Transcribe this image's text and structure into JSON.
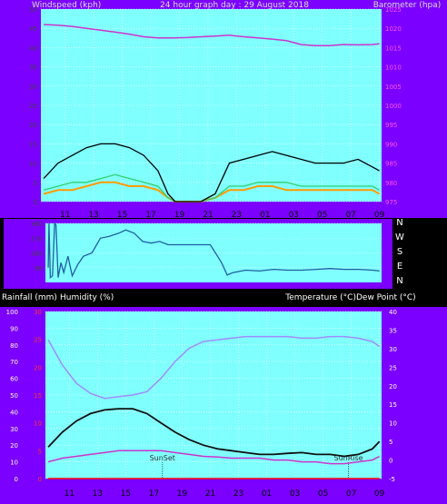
{
  "page": {
    "title": "24 hour graph day : 29 August 2018",
    "colors": {
      "background": "#000000",
      "frame": "#7b00ff",
      "plot": "#80ffff",
      "grid": "#ffffff",
      "wind_speed": "#000000",
      "wind_avg": "#2fd16d",
      "wind_gust": "#ff9a00",
      "barometer": "#cc33cc",
      "direction": "#1f5fa0",
      "humidity": "#a08cff",
      "temperature": "#101010",
      "dew_point": "#cc33cc",
      "rainfall": "#ff0000"
    }
  },
  "chart_data": [
    {
      "type": "line",
      "name": "wind-barometer",
      "title": "24 hour graph day : 29 August 2018",
      "ylabel": "Windspeed (kph)",
      "y2label": "Barometer (hpa)",
      "xticks": [
        "11",
        "13",
        "15",
        "17",
        "19",
        "21",
        "23",
        "01",
        "03",
        "05",
        "07",
        "09"
      ],
      "x_hours_ticks": [
        11,
        13,
        15,
        17,
        19,
        21,
        23,
        25,
        27,
        29,
        31,
        33
      ],
      "xlim": [
        9.3,
        33.15
      ],
      "ylim": [
        0,
        50
      ],
      "yticks": [
        0,
        5,
        10,
        15,
        20,
        25,
        30,
        35,
        40,
        45,
        50
      ],
      "y2lim": [
        975,
        1025
      ],
      "y2ticks": [
        975,
        980,
        985,
        990,
        995,
        1000,
        1005,
        1010,
        1015,
        1020,
        1025
      ],
      "series": [
        {
          "key": "wind_speed",
          "x_hours": [
            9.5,
            10.5,
            11.5,
            12.5,
            13.5,
            14.5,
            15.5,
            16.5,
            17.5,
            18.2,
            18.7,
            19.5,
            20.5,
            21.5,
            22.5,
            23.5,
            24.5,
            25.5,
            26.5,
            27.5,
            28.5,
            29.5,
            30.5,
            31.5,
            32.5,
            33.0
          ],
          "values": [
            6,
            10,
            12,
            14,
            15,
            15,
            14,
            12,
            8,
            2,
            0,
            0,
            0,
            2,
            10,
            11,
            12,
            13,
            12,
            11,
            10,
            10,
            10,
            11,
            9,
            8
          ]
        },
        {
          "key": "wind_avg",
          "x_hours": [
            9.5,
            10.5,
            11.5,
            12.5,
            13.5,
            14.5,
            15.5,
            16.5,
            17.5,
            18.2,
            18.7,
            19.5,
            20.5,
            21.5,
            22.5,
            23.5,
            24.5,
            25.5,
            26.5,
            27.5,
            28.5,
            29.5,
            30.5,
            31.5,
            32.5,
            33.0
          ],
          "values": [
            3,
            4,
            5,
            5,
            6,
            7,
            6,
            5,
            4,
            1,
            0,
            0,
            0,
            1,
            4,
            4,
            5,
            5,
            5,
            4,
            4,
            4,
            4,
            4,
            4,
            3
          ]
        },
        {
          "key": "wind_gust",
          "x_hours": [
            9.5,
            10.5,
            11.5,
            12.5,
            13.5,
            14.5,
            15.5,
            16.5,
            17.5,
            18.2,
            18.7,
            19.5,
            20.5,
            21.5,
            22.5,
            23.5,
            24.5,
            25.5,
            26.5,
            27.5,
            28.5,
            29.5,
            30.5,
            31.5,
            32.5,
            33.0
          ],
          "values": [
            2,
            3,
            3,
            4,
            5,
            5,
            4,
            4,
            3,
            1,
            0,
            0,
            0,
            1,
            3,
            3,
            4,
            4,
            3,
            3,
            3,
            3,
            3,
            3,
            3,
            2
          ]
        },
        {
          "key": "barometer",
          "axis": "y2",
          "x_hours": [
            9.5,
            10.5,
            11.5,
            12.5,
            13.5,
            14.5,
            15.5,
            16.5,
            17.5,
            18.5,
            19.5,
            20.5,
            21.5,
            22.5,
            23.5,
            24.5,
            25.5,
            26.5,
            27.5,
            28.5,
            29.5,
            30.5,
            31.5,
            32.5,
            33.0
          ],
          "values": [
            1021.0,
            1020.8,
            1020.5,
            1020.0,
            1019.5,
            1019.0,
            1018.5,
            1017.8,
            1017.5,
            1017.5,
            1017.6,
            1017.8,
            1018.0,
            1018.2,
            1017.8,
            1017.5,
            1017.2,
            1016.8,
            1015.8,
            1015.5,
            1015.5,
            1015.8,
            1015.7,
            1015.8,
            1016.0
          ]
        }
      ]
    },
    {
      "type": "line",
      "name": "wind-direction",
      "ylim": [
        0,
        360
      ],
      "yticks": [
        90,
        180,
        270,
        360
      ],
      "ytick_labels": [
        "90",
        "180",
        "270",
        "360"
      ],
      "direction_labels": [
        "N",
        "W",
        "S",
        "E",
        "N"
      ],
      "xlim": [
        9.3,
        33.15
      ],
      "series": [
        {
          "key": "direction",
          "x_hours": [
            9.5,
            9.55,
            9.65,
            9.8,
            9.95,
            10.05,
            10.2,
            10.4,
            10.6,
            10.9,
            11.2,
            11.6,
            12.0,
            12.6,
            13.2,
            13.8,
            14.5,
            15.0,
            15.6,
            16.2,
            16.8,
            17.4,
            18.0,
            18.5,
            19.0,
            20.0,
            21.0,
            21.8,
            22.2,
            22.6,
            23.5,
            24.5,
            25.5,
            26.5,
            27.5,
            28.5,
            29.5,
            30.5,
            31.5,
            32.5,
            33.0
          ],
          "values": [
            90,
            360,
            30,
            40,
            360,
            350,
            30,
            120,
            60,
            160,
            40,
            110,
            160,
            180,
            270,
            280,
            300,
            320,
            300,
            250,
            240,
            250,
            230,
            230,
            230,
            230,
            230,
            120,
            45,
            60,
            75,
            70,
            80,
            75,
            75,
            80,
            85,
            80,
            80,
            75,
            70
          ]
        }
      ]
    },
    {
      "type": "line",
      "name": "temp-humidity",
      "ylabel_left1": "Rainfall (mm)",
      "ylabel_left2": "Humidity (%)",
      "ylabel_right": "Temperature (°C)Dew Point (°C)",
      "xticks": [
        "11",
        "13",
        "15",
        "17",
        "19",
        "21",
        "23",
        "01",
        "03",
        "05",
        "07",
        "09"
      ],
      "x_hours_ticks": [
        11,
        13,
        15,
        17,
        19,
        21,
        23,
        25,
        27,
        29,
        31,
        33
      ],
      "xlim": [
        9.3,
        33.15
      ],
      "humidity_lim": [
        0,
        100
      ],
      "humidity_ticks": [
        0,
        10,
        20,
        30,
        40,
        50,
        60,
        70,
        80,
        90,
        100
      ],
      "rain_lim": [
        0,
        30
      ],
      "rain_ticks": [
        0,
        5,
        10,
        15,
        20,
        25,
        30
      ],
      "temp_lim": [
        -5,
        40
      ],
      "temp_ticks": [
        -5,
        0,
        5,
        10,
        15,
        20,
        25,
        30,
        35,
        40
      ],
      "annotations": [
        {
          "label": "SunSet",
          "x_hours": 17.6
        },
        {
          "label": "SunRise",
          "x_hours": 30.8
        }
      ],
      "series": [
        {
          "key": "humidity",
          "axis": "humidity",
          "x_hours": [
            9.5,
            10.5,
            11.5,
            12.5,
            13.5,
            14.5,
            15.5,
            16.5,
            17.5,
            18.5,
            19.5,
            20.5,
            21.5,
            22.5,
            23.5,
            24.5,
            25.5,
            26.5,
            27.5,
            28.5,
            29.5,
            30.5,
            31.5,
            32.5,
            33.0
          ],
          "values": [
            83,
            68,
            57,
            51,
            48,
            49,
            50,
            52,
            60,
            70,
            78,
            82,
            83,
            84,
            85,
            85,
            85,
            85,
            84,
            84,
            85,
            85,
            84,
            82,
            79
          ]
        },
        {
          "key": "temperature",
          "axis": "temp",
          "x_hours": [
            9.5,
            10.5,
            11.5,
            12.5,
            13.5,
            14.5,
            15.5,
            16.5,
            17.5,
            18.5,
            19.5,
            20.5,
            21.5,
            22.5,
            23.5,
            24.5,
            25.5,
            26.5,
            27.5,
            28.5,
            29.5,
            30.5,
            31.5,
            32.5,
            33.0
          ],
          "values": [
            3.5,
            7.5,
            10.5,
            12.5,
            13.5,
            13.8,
            13.8,
            12.5,
            10.0,
            7.5,
            5.5,
            4.0,
            3.0,
            2.5,
            2.0,
            1.5,
            1.5,
            1.8,
            2.0,
            1.5,
            1.5,
            1.0,
            1.5,
            3.0,
            5.0
          ]
        },
        {
          "key": "dew_point",
          "axis": "temp",
          "x_hours": [
            9.5,
            10.5,
            11.5,
            12.5,
            13.5,
            14.5,
            15.5,
            16.5,
            17.5,
            18.5,
            19.5,
            20.5,
            21.5,
            22.5,
            23.5,
            24.5,
            25.5,
            26.5,
            27.5,
            28.5,
            29.5,
            30.5,
            31.5,
            32.5,
            33.0
          ],
          "values": [
            -0.5,
            0.5,
            1.0,
            1.5,
            2.0,
            2.5,
            2.5,
            2.5,
            2.5,
            2.0,
            1.5,
            1.0,
            0.8,
            0.5,
            0.5,
            0.5,
            0.0,
            0.0,
            -0.5,
            -0.5,
            -1.0,
            -1.0,
            -0.5,
            0.0,
            1.0
          ]
        },
        {
          "key": "rainfall",
          "axis": "rain",
          "x_hours": [
            9.5,
            33.0
          ],
          "values": [
            0,
            0
          ]
        }
      ]
    }
  ]
}
